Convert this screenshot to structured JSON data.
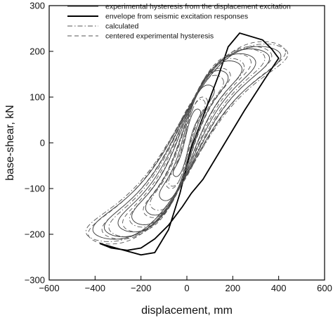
{
  "chart_data": {
    "type": "line",
    "title": "",
    "xlabel": "displacement, mm",
    "ylabel": "base-shear, kN",
    "xlim": [
      -600,
      600
    ],
    "ylim": [
      -300,
      300
    ],
    "xticks": [
      -600,
      -400,
      -200,
      0,
      200,
      400,
      600
    ],
    "yticks": [
      -300,
      -200,
      -100,
      0,
      100,
      200,
      300
    ],
    "xtick_labels": [
      "−600",
      "−400",
      "−200",
      "0",
      "200",
      "400",
      "600"
    ],
    "ytick_labels": [
      "−300",
      "−200",
      "−100",
      "0",
      "100",
      "200",
      "300"
    ],
    "grid": false,
    "legend_position": "top",
    "series": [
      {
        "name": "experimental hysteresis from the displacement excitation",
        "style": "solid",
        "color": "#333333",
        "loops": [
          {
            "amp": 60,
            "f": 70
          },
          {
            "amp": 120,
            "f": 120
          },
          {
            "amp": 180,
            "f": 150
          },
          {
            "amp": 240,
            "f": 170
          },
          {
            "amp": 300,
            "f": 185
          },
          {
            "amp": 360,
            "f": 195
          },
          {
            "amp": 410,
            "f": 200
          }
        ]
      },
      {
        "name": "envelope from seismic excitation responses",
        "style": "solid-thick",
        "color": "#000000",
        "x": [
          -380,
          -310,
          -200,
          -140,
          -80,
          -30,
          20,
          80,
          140,
          180,
          230,
          330,
          370,
          400,
          340,
          250,
          190,
          130,
          70,
          20,
          -20,
          -80,
          -140,
          -200,
          -260,
          -330,
          -380
        ],
        "y": [
          -220,
          -230,
          -245,
          -240,
          -190,
          -110,
          -10,
          70,
          150,
          210,
          240,
          225,
          205,
          185,
          140,
          70,
          20,
          -30,
          -80,
          -110,
          -140,
          -180,
          -210,
          -230,
          -235,
          -230,
          -220
        ]
      },
      {
        "name": "calculated",
        "style": "dashdot",
        "color": "#555555",
        "loops": [
          {
            "amp": 80,
            "f": 90
          },
          {
            "amp": 160,
            "f": 140
          },
          {
            "amp": 250,
            "f": 175
          },
          {
            "amp": 340,
            "f": 195
          },
          {
            "amp": 440,
            "f": 205
          }
        ]
      },
      {
        "name": "centered experimental hysteresis",
        "style": "dashed",
        "color": "#555555",
        "loops": [
          {
            "amp": 90,
            "f": 95
          },
          {
            "amp": 190,
            "f": 155
          },
          {
            "amp": 280,
            "f": 185
          },
          {
            "amp": 370,
            "f": 200
          },
          {
            "amp": 430,
            "f": 210
          }
        ]
      }
    ]
  }
}
